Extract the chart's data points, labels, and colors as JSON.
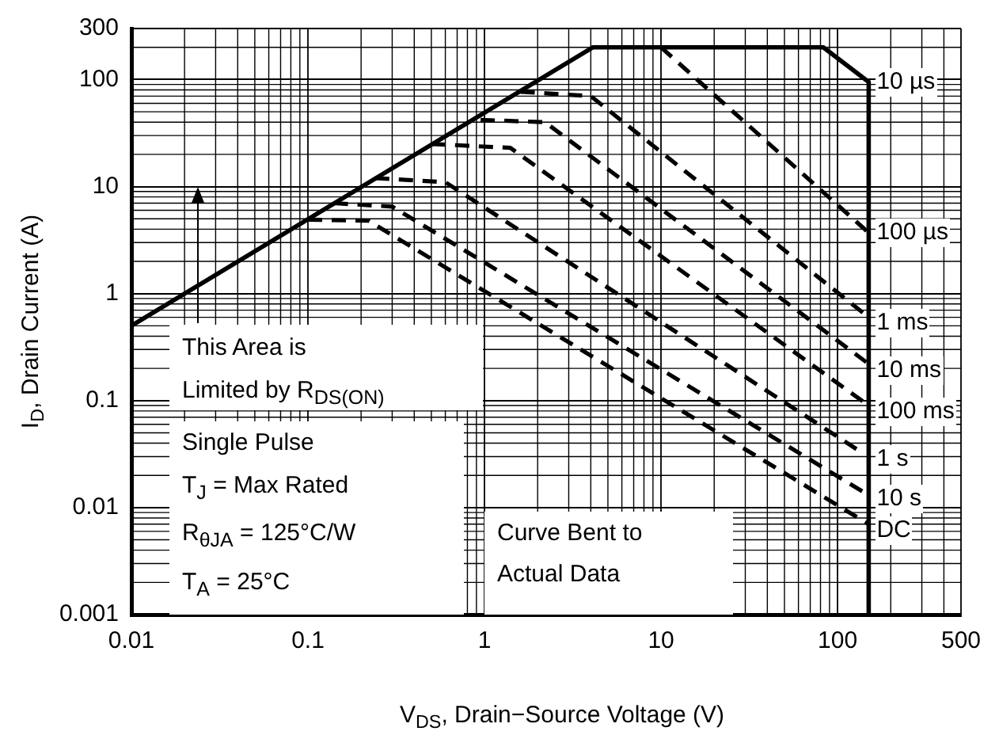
{
  "chart_data": {
    "type": "line",
    "xlabel": "V$_{DS}$, Drain−Source Voltage (V)",
    "ylabel": "I$_{D}$, Drain Current (A)",
    "log": "xy",
    "grid": true,
    "legend": false,
    "marker": "none",
    "xlim": [
      0.01,
      500
    ],
    "xticks": [
      0.01,
      0.1,
      1,
      10,
      100,
      500
    ],
    "ylim": [
      0.001,
      300
    ],
    "yticks": [
      0.001,
      0.01,
      0.1,
      1,
      10,
      100,
      300
    ],
    "series": [
      {
        "name": "10 µs",
        "color": "#000000",
        "line_style": "solid",
        "x": [
          0.01,
          4.1,
          83,
          150,
          150
        ],
        "values": [
          0.5,
          200,
          200,
          95,
          0.001
        ]
      },
      {
        "name": "100 µs",
        "color": "#000000",
        "line_style": "dashed",
        "x": [
          10,
          150
        ],
        "values": [
          200,
          3.7
        ]
      },
      {
        "name": "1 ms",
        "color": "#000000",
        "line_style": "dashed",
        "x": [
          1.6,
          4,
          150
        ],
        "values": [
          77,
          70,
          0.6
        ]
      },
      {
        "name": "10 ms",
        "color": "#000000",
        "line_style": "dashed",
        "x": [
          0.95,
          2.2,
          150
        ],
        "values": [
          42,
          40,
          0.22
        ]
      },
      {
        "name": "100 ms",
        "color": "#000000",
        "line_style": "dashed",
        "x": [
          0.5,
          1.4,
          150
        ],
        "values": [
          25,
          23,
          0.09
        ]
      },
      {
        "name": "1 s",
        "color": "#000000",
        "line_style": "dashed",
        "x": [
          0.24,
          0.6,
          140
        ],
        "values": [
          12,
          11,
          0.032
        ]
      },
      {
        "name": "10 s",
        "color": "#000000",
        "line_style": "dashed",
        "x": [
          0.14,
          0.3,
          140
        ],
        "values": [
          7,
          6.5,
          0.014
        ]
      },
      {
        "name": "DC",
        "color": "#000000",
        "line_style": "dashed",
        "x": [
          0.1,
          0.22,
          150
        ],
        "values": [
          4.9,
          4.8,
          0.007
        ]
      }
    ],
    "annotations": [
      "This Area is\nLimited by R$_{DS(ON)}$",
      "Single Pulse\nT$_{J}$ = Max Rated\nR$_{θJA}$ = 125°C/W\nT$_{A}$ = 25°C",
      "Curve Bent to\nActual Data"
    ]
  }
}
